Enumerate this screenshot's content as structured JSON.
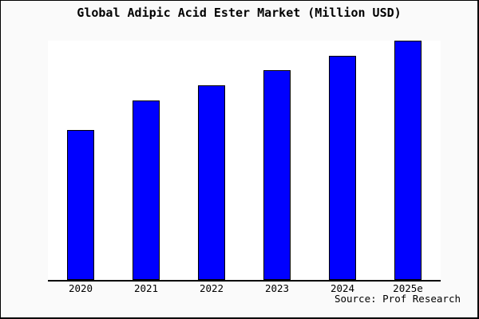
{
  "frame": {
    "background": "#fafafa",
    "plot_background": "#ffffff",
    "border_color": "#000000"
  },
  "source_label": "Source: Prof Research",
  "chart_data": {
    "type": "bar",
    "title": "Global Adipic Acid Ester Market (Million USD)",
    "categories": [
      "2020",
      "2021",
      "2022",
      "2023",
      "2024",
      "2025e"
    ],
    "values": [
      100,
      120,
      130,
      140,
      150,
      160
    ],
    "values_note": "Y-axis has no ticks or labels in the image; values are relative estimates read from bar heights (2020 = 100).",
    "ylim": [
      0,
      160
    ],
    "xlabel": "",
    "ylabel": "",
    "grid": false,
    "legend": false,
    "bar_color": "#0000ff",
    "bar_border_color": "#000000",
    "annotations": [
      "Source: Prof Research"
    ]
  }
}
